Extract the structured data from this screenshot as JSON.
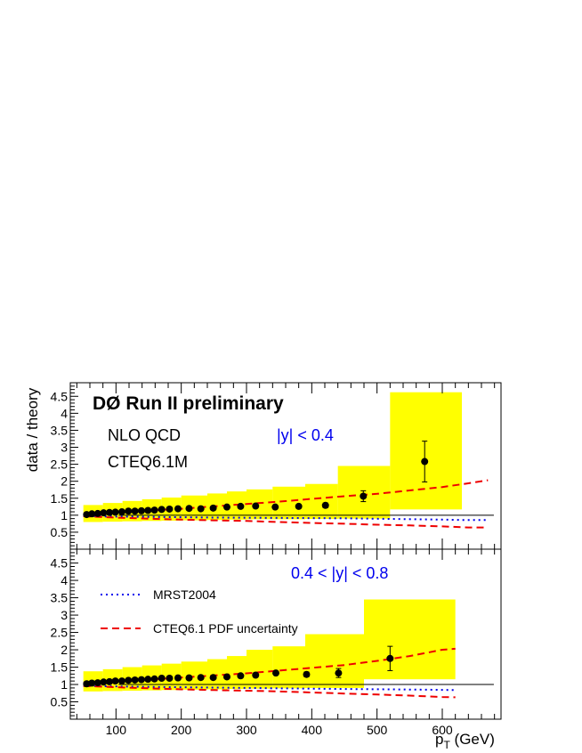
{
  "chart_data": [
    {
      "type": "scatter",
      "panel": "top",
      "experiment_label": "DØ Run II preliminary",
      "theory_label": "NLO QCD",
      "pdf_label": "CTEQ6.1M",
      "rapidity_label": "|y| < 0.4",
      "ylabel": "data / theory",
      "xlim": [
        30,
        690
      ],
      "ylim": [
        0,
        4.9
      ],
      "yticks": [
        0.5,
        1,
        1.5,
        2,
        2.5,
        3,
        3.5,
        4,
        4.5
      ],
      "ytick_labels": [
        "0.5",
        "1",
        "1.5",
        "2",
        "2.5",
        "3",
        "3.5",
        "4",
        "4.5"
      ],
      "reference_line": 1,
      "data_points": {
        "x": [
          55,
          63,
          72,
          81,
          90,
          99,
          109,
          119,
          129,
          139,
          149,
          159,
          170,
          182,
          195,
          212,
          230,
          249,
          270,
          291,
          314,
          344,
          380,
          421,
          479,
          573
        ],
        "y": [
          1.02,
          1.04,
          1.05,
          1.07,
          1.08,
          1.09,
          1.1,
          1.12,
          1.12,
          1.13,
          1.14,
          1.15,
          1.17,
          1.18,
          1.19,
          1.2,
          1.19,
          1.21,
          1.24,
          1.26,
          1.27,
          1.24,
          1.26,
          1.29,
          1.56,
          2.58
        ],
        "err": [
          0.02,
          0.02,
          0.02,
          0.02,
          0.02,
          0.02,
          0.02,
          0.02,
          0.02,
          0.02,
          0.02,
          0.02,
          0.02,
          0.02,
          0.02,
          0.02,
          0.02,
          0.02,
          0.03,
          0.03,
          0.03,
          0.04,
          0.05,
          0.07,
          0.16,
          0.6
        ]
      },
      "systematic_band": {
        "edges": [
          50,
          80,
          110,
          140,
          170,
          200,
          240,
          270,
          300,
          340,
          390,
          440,
          520,
          630
        ],
        "low": [
          0.8,
          0.81,
          0.82,
          0.83,
          0.84,
          0.85,
          0.86,
          0.87,
          0.88,
          0.88,
          0.89,
          0.9,
          1.17
        ],
        "high": [
          1.3,
          1.36,
          1.42,
          1.47,
          1.52,
          1.58,
          1.64,
          1.7,
          1.76,
          1.84,
          1.92,
          2.45,
          4.62
        ]
      },
      "mrst2004": {
        "x": [
          50,
          150,
          250,
          350,
          450,
          520,
          560,
          600,
          630,
          670
        ],
        "y": [
          0.97,
          0.95,
          0.93,
          0.92,
          0.91,
          0.89,
          0.88,
          0.87,
          0.86,
          0.86
        ]
      },
      "cteq_pdf_upper": {
        "x": [
          50,
          100,
          150,
          200,
          250,
          300,
          350,
          400,
          450,
          500,
          550,
          600,
          640,
          670
        ],
        "y": [
          1.04,
          1.08,
          1.14,
          1.19,
          1.26,
          1.33,
          1.4,
          1.48,
          1.56,
          1.63,
          1.73,
          1.83,
          1.94,
          2.03
        ]
      },
      "cteq_pdf_lower": {
        "x": [
          50,
          100,
          150,
          200,
          250,
          300,
          350,
          400,
          450,
          500,
          550,
          600,
          640,
          670
        ],
        "y": [
          0.97,
          0.93,
          0.9,
          0.87,
          0.85,
          0.83,
          0.8,
          0.77,
          0.75,
          0.72,
          0.7,
          0.67,
          0.64,
          0.64
        ]
      }
    },
    {
      "type": "scatter",
      "panel": "bottom",
      "rapidity_label": "0.4 < |y| < 0.8",
      "xlabel": "p_T (GeV)",
      "xlim": [
        30,
        690
      ],
      "ylim": [
        0,
        4.9
      ],
      "xticks": [
        100,
        200,
        300,
        400,
        500,
        600
      ],
      "xtick_labels": [
        "100",
        "200",
        "300",
        "400",
        "500",
        "600"
      ],
      "yticks": [
        0.5,
        1,
        1.5,
        2,
        2.5,
        3,
        3.5,
        4,
        4.5
      ],
      "ytick_labels": [
        "0.5",
        "1",
        "1.5",
        "2",
        "2.5",
        "3",
        "3.5",
        "4",
        "4.5"
      ],
      "reference_line": 1,
      "legend": [
        {
          "name": "MRST2004",
          "style": "dotted",
          "color": "#0000ee"
        },
        {
          "name": "CTEQ6.1 PDF uncertainty",
          "style": "dashed",
          "color": "#ee0000"
        }
      ],
      "data_points": {
        "x": [
          55,
          63,
          72,
          81,
          90,
          99,
          109,
          119,
          129,
          139,
          149,
          159,
          170,
          182,
          195,
          212,
          230,
          249,
          270,
          291,
          314,
          345,
          392,
          441,
          520
        ],
        "y": [
          1.02,
          1.04,
          1.05,
          1.07,
          1.08,
          1.1,
          1.1,
          1.12,
          1.13,
          1.14,
          1.15,
          1.16,
          1.18,
          1.18,
          1.19,
          1.19,
          1.2,
          1.2,
          1.22,
          1.25,
          1.27,
          1.33,
          1.29,
          1.33,
          1.75
        ],
        "err": [
          0.02,
          0.02,
          0.02,
          0.02,
          0.02,
          0.02,
          0.02,
          0.02,
          0.02,
          0.02,
          0.02,
          0.02,
          0.02,
          0.02,
          0.02,
          0.02,
          0.02,
          0.03,
          0.03,
          0.03,
          0.04,
          0.05,
          0.07,
          0.13,
          0.35
        ]
      },
      "systematic_band": {
        "edges": [
          50,
          80,
          110,
          140,
          170,
          200,
          240,
          270,
          300,
          340,
          390,
          480,
          620
        ],
        "low": [
          0.8,
          0.81,
          0.82,
          0.83,
          0.84,
          0.85,
          0.86,
          0.87,
          0.88,
          0.89,
          0.9,
          1.15
        ],
        "high": [
          1.38,
          1.44,
          1.5,
          1.55,
          1.6,
          1.66,
          1.73,
          1.82,
          2.0,
          2.1,
          2.45,
          3.45
        ]
      },
      "mrst2004": {
        "x": [
          50,
          150,
          250,
          350,
          450,
          520,
          580,
          620
        ],
        "y": [
          0.96,
          0.93,
          0.91,
          0.89,
          0.87,
          0.86,
          0.85,
          0.84
        ]
      },
      "cteq_pdf_upper": {
        "x": [
          50,
          100,
          150,
          200,
          250,
          300,
          350,
          400,
          450,
          500,
          550,
          600,
          620
        ],
        "y": [
          1.05,
          1.09,
          1.14,
          1.2,
          1.26,
          1.32,
          1.4,
          1.48,
          1.56,
          1.68,
          1.82,
          2.0,
          2.03
        ]
      },
      "cteq_pdf_lower": {
        "x": [
          50,
          100,
          150,
          200,
          250,
          300,
          350,
          400,
          450,
          500,
          550,
          600,
          620
        ],
        "y": [
          0.96,
          0.92,
          0.89,
          0.86,
          0.84,
          0.82,
          0.8,
          0.77,
          0.74,
          0.71,
          0.68,
          0.64,
          0.63
        ]
      }
    }
  ],
  "colors": {
    "band": "#ffff00",
    "mrst": "#0000ee",
    "cteq": "#ee0000",
    "rapidity_text": "#0000ee",
    "points": "#000000"
  }
}
